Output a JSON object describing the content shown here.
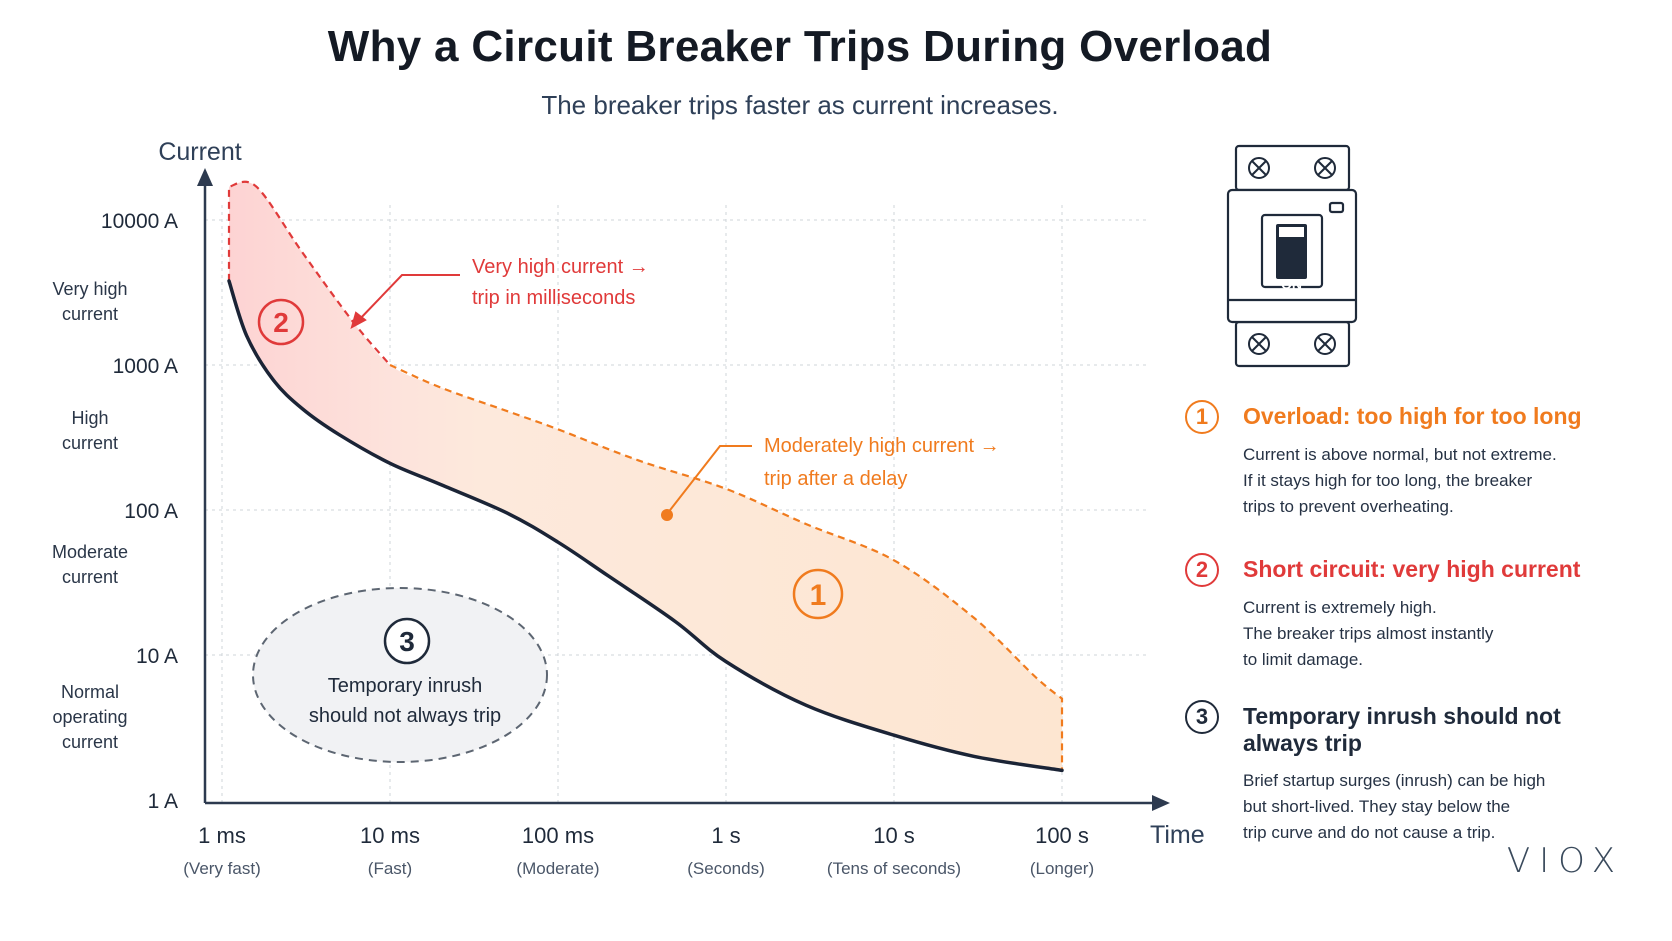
{
  "header": {
    "title": "Why a Circuit Breaker Trips During Overload",
    "subtitle": "The breaker trips faster as current increases."
  },
  "chart_data": {
    "type": "area",
    "xscale": "log",
    "yscale": "log",
    "xlabel": "Time",
    "ylabel": "Current",
    "x_ticks": [
      {
        "value": 0.001,
        "label": "1 ms",
        "note": "(Very fast)"
      },
      {
        "value": 0.01,
        "label": "10 ms",
        "note": "(Fast)"
      },
      {
        "value": 0.1,
        "label": "100 ms",
        "note": "(Moderate)"
      },
      {
        "value": 1,
        "label": "1 s",
        "note": "(Seconds)"
      },
      {
        "value": 10,
        "label": "10 s",
        "note": "(Tens of seconds)"
      },
      {
        "value": 100,
        "label": "100 s",
        "note": "(Longer)"
      }
    ],
    "y_ticks": [
      {
        "value": 1,
        "label": "1 A"
      },
      {
        "value": 10,
        "label": "10 A"
      },
      {
        "value": 100,
        "label": "100 A"
      },
      {
        "value": 1000,
        "label": "1000 A"
      },
      {
        "value": 10000,
        "label": "10000 A"
      }
    ],
    "y_bands": [
      {
        "label": "Very high current",
        "lines": [
          "Very high",
          "current"
        ]
      },
      {
        "label": "High current",
        "lines": [
          "High",
          "current"
        ]
      },
      {
        "label": "Moderate current",
        "lines": [
          "Moderate",
          "current"
        ]
      },
      {
        "label": "Normal operating current",
        "lines": [
          "Normal",
          "operating",
          "current"
        ]
      }
    ],
    "grid": true,
    "series": [
      {
        "role": "lower boundary",
        "color": "#1b2436",
        "points": [
          [
            0.0011,
            3800
          ],
          [
            0.0014,
            1600
          ],
          [
            0.002,
            800
          ],
          [
            0.003,
            500
          ],
          [
            0.005,
            330
          ],
          [
            0.01,
            210
          ],
          [
            0.02,
            150
          ],
          [
            0.05,
            95
          ],
          [
            0.1,
            60
          ],
          [
            0.2,
            35
          ],
          [
            0.5,
            17
          ],
          [
            1,
            9
          ],
          [
            3,
            4.5
          ],
          [
            10,
            2.8
          ],
          [
            30,
            2
          ],
          [
            100,
            1.6
          ]
        ]
      },
      {
        "role": "upper boundary (short-circuit region)",
        "color": "#e03a3a",
        "points": [
          [
            0.0011,
            17000
          ],
          [
            0.0016,
            17000
          ],
          [
            0.003,
            6000
          ],
          [
            0.006,
            2000
          ],
          [
            0.01,
            1000
          ]
        ]
      },
      {
        "role": "upper boundary (overload region)",
        "color": "#f07b1e",
        "points": [
          [
            0.01,
            1000
          ],
          [
            0.02,
            700
          ],
          [
            0.05,
            480
          ],
          [
            0.1,
            360
          ],
          [
            0.3,
            220
          ],
          [
            1,
            140
          ],
          [
            3,
            80
          ],
          [
            10,
            45
          ],
          [
            30,
            18
          ],
          [
            70,
            7
          ],
          [
            100,
            5
          ],
          [
            100,
            1.6
          ]
        ]
      }
    ],
    "regions": [
      {
        "id": "1",
        "name": "Overload",
        "color": "#f07b1e"
      },
      {
        "id": "2",
        "name": "Short circuit",
        "color": "#e03a3a"
      },
      {
        "id": "3",
        "name": "Temporary inrush",
        "color": "#8a929c"
      }
    ],
    "annotations": {
      "very_high": {
        "lines": [
          "Very high current →",
          "trip in milliseconds"
        ],
        "color": "#e03a3a"
      },
      "moderately_high": {
        "lines": [
          "Moderately high current →",
          "trip after a delay"
        ],
        "color": "#f07b1e"
      },
      "inrush": {
        "number": "3",
        "lines": [
          "Temporary inrush",
          "should not always trip"
        ]
      },
      "region1_badge": "1",
      "region2_badge": "2"
    }
  },
  "breaker": {
    "switch_label": "ON"
  },
  "legend": [
    {
      "number": "1",
      "title": "Overload: too high for too long",
      "color": "#f07b1e",
      "body": [
        "Current is above normal, but not extreme.",
        "If it stays high for too long, the breaker",
        "trips to prevent overheating."
      ]
    },
    {
      "number": "2",
      "title": "Short circuit: very high current",
      "color": "#e03a3a",
      "body": [
        "Current is extremely high.",
        "The breaker trips almost instantly",
        "to limit damage."
      ]
    },
    {
      "number": "3",
      "title": "Temporary inrush should not",
      "title2": "always trip",
      "color": "#1f2a3a",
      "body": [
        "Brief startup surges (inrush) can be high",
        "but short-lived. They stay below the",
        "trip curve and do not cause a trip."
      ]
    }
  ],
  "brand": "VIOX"
}
